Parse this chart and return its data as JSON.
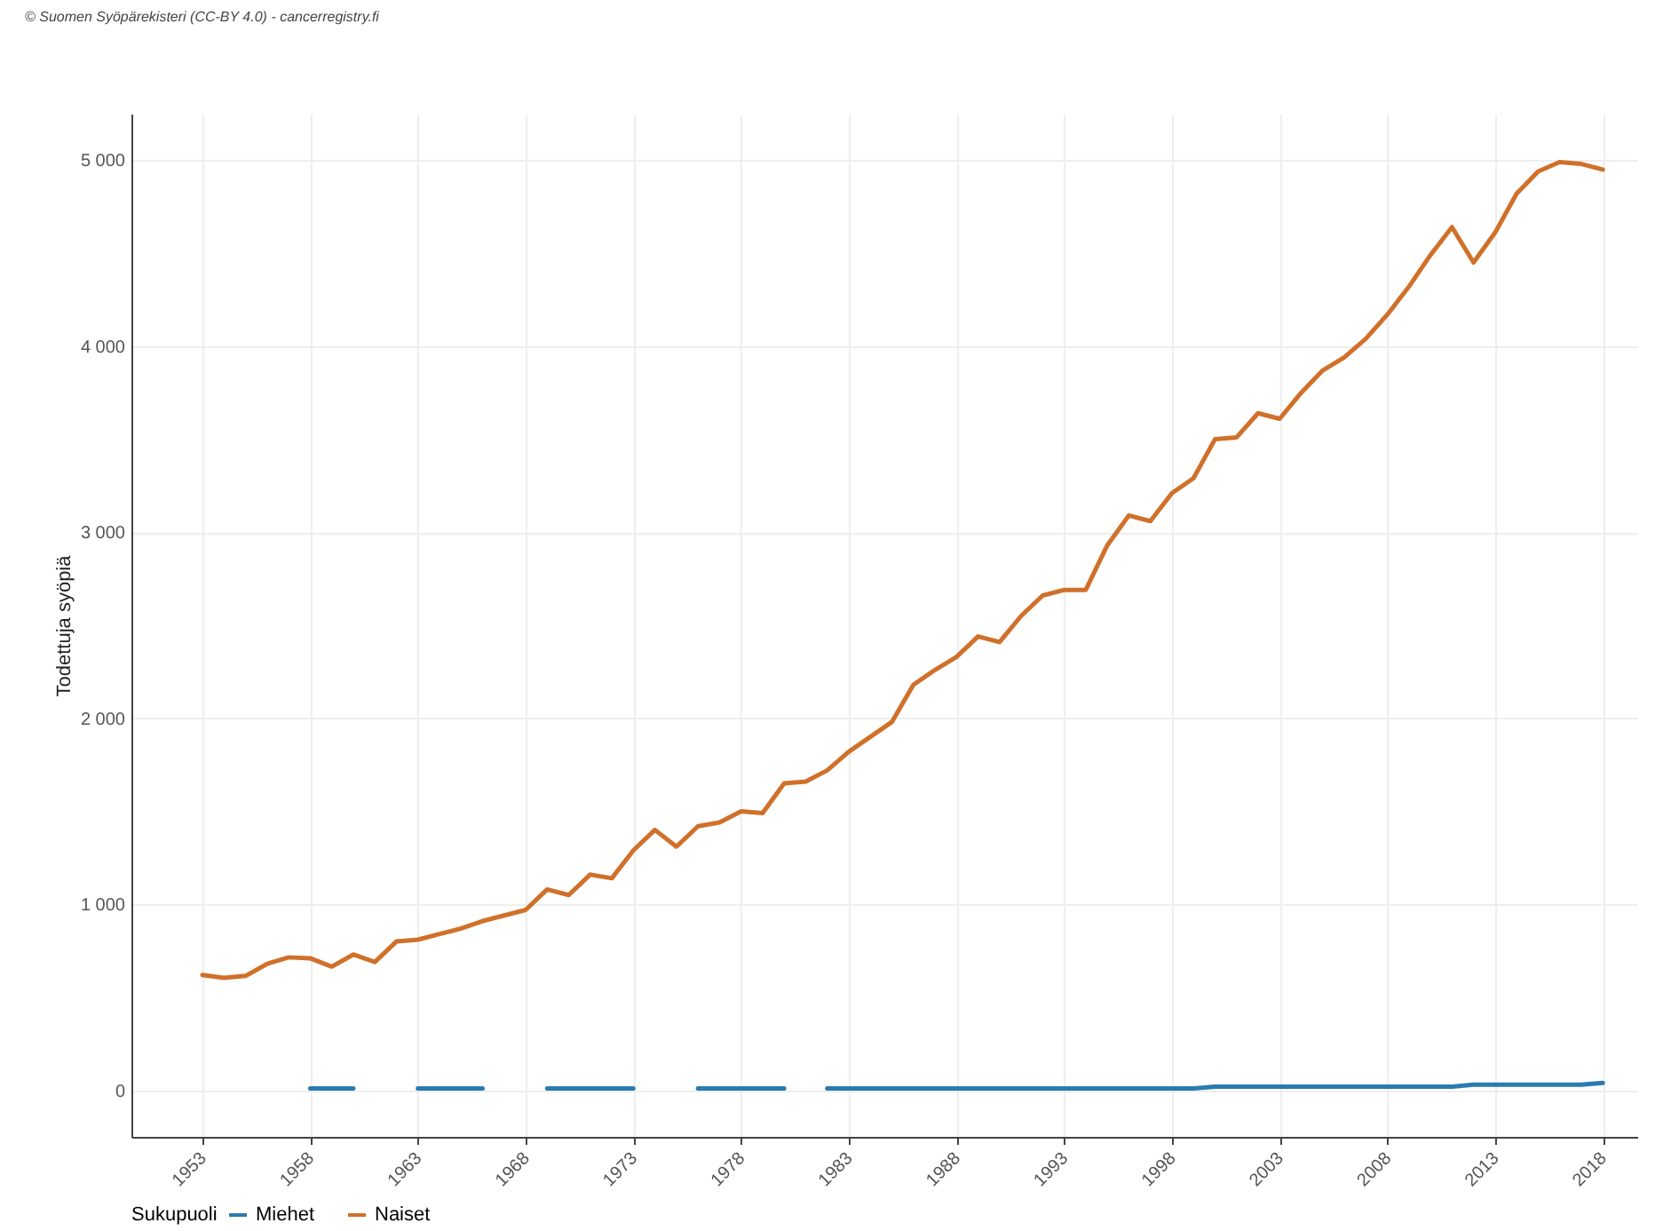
{
  "chart_data": {
    "type": "line",
    "annotations": [
      "© Suomen Syöpärekisteri (CC-BY 4.0) - cancerregistry.fi"
    ],
    "ylabel": "Todettuja syöpiä",
    "legend_title": "Sukupuoli",
    "x": [
      1953,
      1954,
      1955,
      1956,
      1957,
      1958,
      1959,
      1960,
      1961,
      1962,
      1963,
      1964,
      1965,
      1966,
      1967,
      1968,
      1969,
      1970,
      1971,
      1972,
      1973,
      1974,
      1975,
      1976,
      1977,
      1978,
      1979,
      1980,
      1981,
      1982,
      1983,
      1984,
      1985,
      1986,
      1987,
      1988,
      1989,
      1990,
      1991,
      1992,
      1993,
      1994,
      1995,
      1996,
      1997,
      1998,
      1999,
      2000,
      2001,
      2002,
      2003,
      2004,
      2005,
      2006,
      2007,
      2008,
      2009,
      2010,
      2011,
      2012,
      2013,
      2014,
      2015,
      2016,
      2017,
      2018
    ],
    "series": [
      {
        "name": "Miehet",
        "color": "#2b7bb0",
        "values": [
          null,
          null,
          null,
          null,
          null,
          10,
          10,
          10,
          null,
          null,
          10,
          10,
          10,
          10,
          null,
          null,
          10,
          10,
          10,
          10,
          10,
          null,
          null,
          10,
          10,
          10,
          10,
          10,
          null,
          10,
          10,
          10,
          10,
          10,
          10,
          10,
          10,
          10,
          10,
          10,
          10,
          10,
          10,
          10,
          10,
          10,
          10,
          20,
          20,
          20,
          20,
          20,
          20,
          20,
          20,
          20,
          20,
          20,
          20,
          30,
          30,
          30,
          30,
          30,
          30,
          40
        ]
      },
      {
        "name": "Naiset",
        "color": "#d0702a",
        "values": [
          620,
          605,
          615,
          680,
          715,
          710,
          665,
          730,
          690,
          800,
          810,
          840,
          870,
          910,
          940,
          970,
          1080,
          1050,
          1160,
          1140,
          1290,
          1400,
          1310,
          1420,
          1440,
          1500,
          1490,
          1650,
          1660,
          1720,
          1820,
          1900,
          1980,
          2180,
          2260,
          2330,
          2440,
          2410,
          2550,
          2660,
          2690,
          2690,
          2930,
          3090,
          3060,
          3210,
          3290,
          3500,
          3510,
          3640,
          3610,
          3750,
          3870,
          3940,
          4040,
          4170,
          4320,
          4490,
          4640,
          4450,
          4610,
          4820,
          4940,
          4990,
          4980,
          4950
        ]
      }
    ],
    "xlim": [
      1949.7,
      2019.6
    ],
    "xticks": [
      1953,
      1958,
      1963,
      1968,
      1973,
      1978,
      1983,
      1988,
      1993,
      1998,
      2003,
      2008,
      2013,
      2018
    ],
    "ylim": [
      -250,
      5250
    ],
    "yticks": [
      {
        "value": 0,
        "label": "0"
      },
      {
        "value": 1000,
        "label": "1 000"
      },
      {
        "value": 2000,
        "label": "2 000"
      },
      {
        "value": 3000,
        "label": "3 000"
      },
      {
        "value": 4000,
        "label": "4 000"
      },
      {
        "value": 5000,
        "label": "5 000"
      }
    ],
    "grid": true,
    "legend": "bottom",
    "marker": "none",
    "line_style": "solid"
  }
}
